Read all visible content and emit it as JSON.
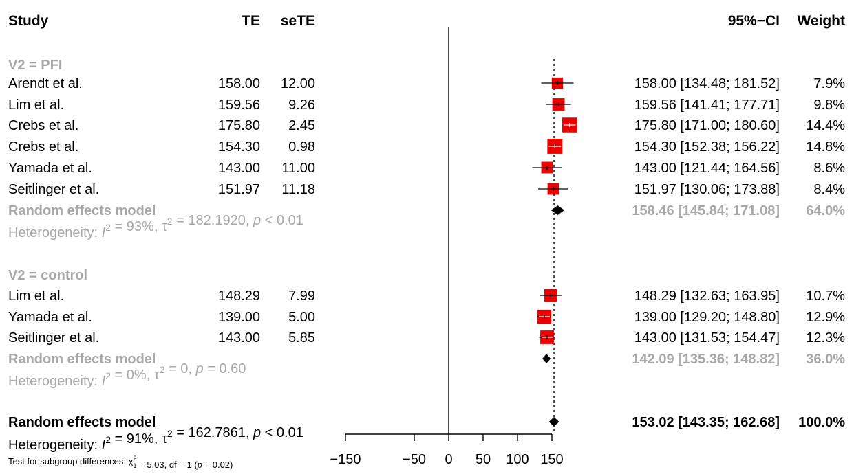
{
  "chart_data": {
    "type": "forest",
    "headers": {
      "study": "Study",
      "te": "TE",
      "sete": "seTE",
      "ci": "95%−CI",
      "weight": "Weight"
    },
    "groups": [
      {
        "label": "V2 = PFI",
        "studies": [
          {
            "study": "Arendt et al.",
            "te": "158.00",
            "sete": "12.00",
            "est": 158.0,
            "lo": 134.48,
            "hi": 181.52,
            "ci": "158.00  [134.48; 181.52]",
            "weight": "7.9%",
            "w": 7.9
          },
          {
            "study": "Lim et al.",
            "te": "159.56",
            "sete": "9.26",
            "est": 159.56,
            "lo": 141.41,
            "hi": 177.71,
            "ci": "159.56  [141.41; 177.71]",
            "weight": "9.8%",
            "w": 9.8
          },
          {
            "study": "Crebs et al.",
            "te": "175.80",
            "sete": "2.45",
            "est": 175.8,
            "lo": 171.0,
            "hi": 180.6,
            "ci": "175.80  [171.00; 180.60]",
            "weight": "14.4%",
            "w": 14.4
          },
          {
            "study": "Crebs et al.",
            "te": "154.30",
            "sete": "0.98",
            "est": 154.3,
            "lo": 152.38,
            "hi": 156.22,
            "ci": "154.30  [152.38; 156.22]",
            "weight": "14.8%",
            "w": 14.8
          },
          {
            "study": "Yamada et al.",
            "te": "143.00",
            "sete": "11.00",
            "est": 143.0,
            "lo": 121.44,
            "hi": 164.56,
            "ci": "143.00  [121.44; 164.56]",
            "weight": "8.6%",
            "w": 8.6
          },
          {
            "study": "Seitlinger et al.",
            "te": "151.97",
            "sete": "11.18",
            "est": 151.97,
            "lo": 130.06,
            "hi": 173.88,
            "ci": "151.97  [130.06; 173.88]",
            "weight": "8.4%",
            "w": 8.4
          }
        ],
        "summary": {
          "label": "Random effects model",
          "est": 158.46,
          "lo": 145.84,
          "hi": 171.08,
          "ci": "158.46  [145.84; 171.08]",
          "weight": "64.0%"
        },
        "heterogeneity": {
          "prefix": "Heterogeneity: ",
          "i2": "I",
          "i2_val": " = 93%, ",
          "tau": "τ",
          "tau_val": " = 182.1920, ",
          "p": "p",
          "p_val": " < 0.01"
        }
      },
      {
        "label": "V2 = control",
        "studies": [
          {
            "study": "Lim et al.",
            "te": "148.29",
            "sete": "7.99",
            "est": 148.29,
            "lo": 132.63,
            "hi": 163.95,
            "ci": "148.29  [132.63; 163.95]",
            "weight": "10.7%",
            "w": 10.7
          },
          {
            "study": "Yamada et al.",
            "te": "139.00",
            "sete": "5.00",
            "est": 139.0,
            "lo": 129.2,
            "hi": 148.8,
            "ci": "139.00  [129.20; 148.80]",
            "weight": "12.9%",
            "w": 12.9
          },
          {
            "study": "Seitlinger et al.",
            "te": "143.00",
            "sete": "5.85",
            "est": 143.0,
            "lo": 131.53,
            "hi": 154.47,
            "ci": "143.00  [131.53; 154.47]",
            "weight": "12.3%",
            "w": 12.3
          }
        ],
        "summary": {
          "label": "Random effects model",
          "est": 142.09,
          "lo": 135.36,
          "hi": 148.82,
          "ci": "142.09  [135.36; 148.82]",
          "weight": "36.0%"
        },
        "heterogeneity": {
          "prefix": "Heterogeneity: ",
          "i2": "I",
          "i2_val": " = 0%, ",
          "tau": "τ",
          "tau_val": " = 0, ",
          "p": "p",
          "p_val": " = 0.60"
        }
      }
    ],
    "overall": {
      "label": "Random effects model",
      "est": 153.02,
      "lo": 143.35,
      "hi": 162.68,
      "ci": "153.02  [143.35; 162.68]",
      "weight": "100.0%",
      "heterogeneity": {
        "prefix": "Heterogeneity: ",
        "i2": "I",
        "i2_val": " = 91%, ",
        "tau": "τ",
        "tau_val": " = 162.7861, ",
        "p": "p",
        "p_val": " < 0.01"
      },
      "subgroup_test": {
        "prefix": "Test for subgroup differences: ",
        "chi": "χ",
        "chi_val": " = 5.03, df = 1 (",
        "p": "p",
        "p_val": " = 0.02)"
      }
    },
    "axis": {
      "ticks": [
        -150,
        -50,
        0,
        50,
        100,
        150
      ],
      "tick_labels": [
        "−150",
        "−50",
        "0",
        "50",
        "100",
        "150"
      ],
      "xlim": [
        -150,
        150
      ],
      "reference_line": 0,
      "summary_line": 153.02
    },
    "colors": {
      "square": "#ee0000",
      "diamond": "#000000",
      "subgroup_text": "#a8a8a8",
      "line": "#000000"
    }
  }
}
